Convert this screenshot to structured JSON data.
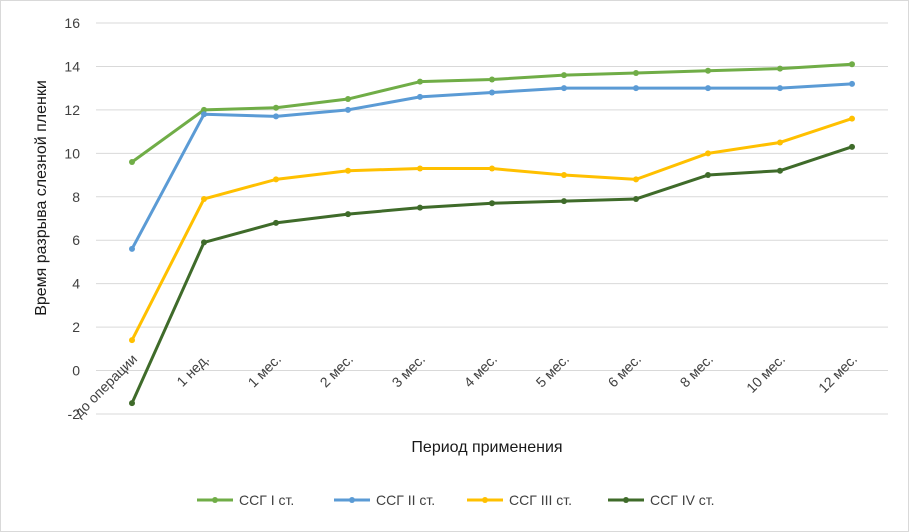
{
  "chart_data": {
    "type": "line",
    "title": "",
    "xlabel": "Период применения",
    "ylabel": "Время разрыва слезной пленки",
    "ylim": [
      -2,
      16
    ],
    "yticks": [
      "-2",
      "0",
      "2",
      "4",
      "6",
      "8",
      "10",
      "12",
      "14",
      "16"
    ],
    "grid": true,
    "legend_position": "bottom",
    "categories": [
      "до операции",
      "1 нед.",
      "1 мес.",
      "2 мес.",
      "3 мес.",
      "4 мес.",
      "5 мес.",
      "6 мес.",
      "8 мес.",
      "10 мес.",
      "12 мес."
    ],
    "series": [
      {
        "name": "ССГ I ст.",
        "color": "#70ad47",
        "values": [
          9.6,
          12.0,
          12.1,
          12.5,
          13.3,
          13.4,
          13.6,
          13.7,
          13.8,
          13.9,
          14.1
        ]
      },
      {
        "name": "ССГ II ст.",
        "color": "#5b9bd5",
        "values": [
          5.6,
          11.8,
          11.7,
          12.0,
          12.6,
          12.8,
          13.0,
          13.0,
          13.0,
          13.0,
          13.2
        ]
      },
      {
        "name": "ССГ III ст.",
        "color": "#ffc000",
        "values": [
          1.4,
          7.9,
          8.8,
          9.2,
          9.3,
          9.3,
          9.0,
          8.8,
          10.0,
          10.5,
          11.6
        ]
      },
      {
        "name": "ССГ IV ст.",
        "color": "#3f6b2a",
        "values": [
          -1.5,
          5.9,
          6.8,
          7.2,
          7.5,
          7.7,
          7.8,
          7.9,
          9.0,
          9.2,
          10.3
        ]
      }
    ]
  }
}
